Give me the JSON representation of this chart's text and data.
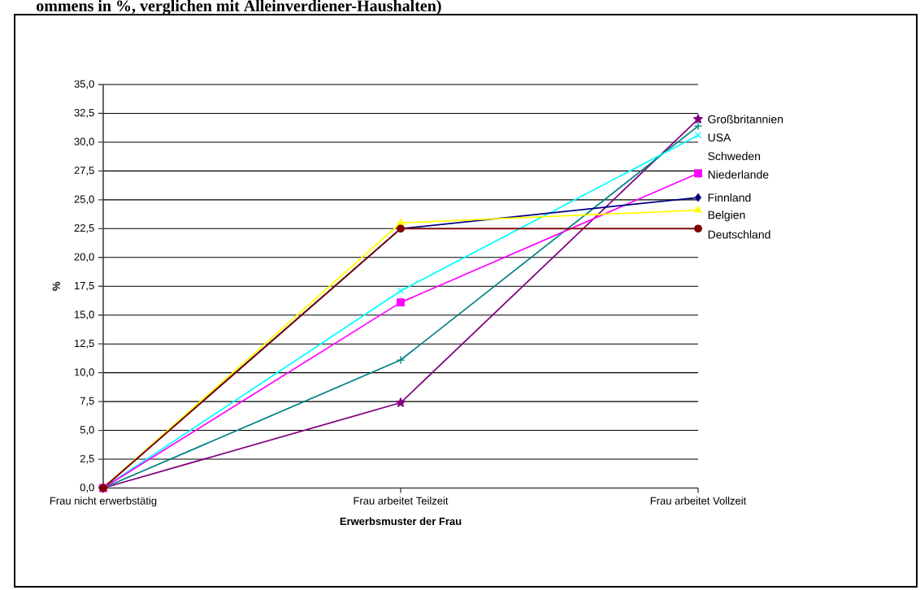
{
  "chart_data": {
    "type": "line",
    "title": "ommens in %, verglichen mit Alleinverdiener-Haushalten)",
    "xlabel": "Erwerbsmuster der Frau",
    "ylabel": "%",
    "categories": [
      "Frau nicht erwerbstätig",
      "Frau arbeitet Teilzeit",
      "Frau arbeitet Vollzeit"
    ],
    "ylim": [
      0,
      35
    ],
    "yticks": [
      {
        "value": 0,
        "label": "0,0"
      },
      {
        "value": 2.5,
        "label": "2,5"
      },
      {
        "value": 5,
        "label": "5,0"
      },
      {
        "value": 7.5,
        "label": "7,5"
      },
      {
        "value": 10,
        "label": "10,0"
      },
      {
        "value": 12.5,
        "label": "12,5"
      },
      {
        "value": 15,
        "label": "15,0"
      },
      {
        "value": 17.5,
        "label": "17,5"
      },
      {
        "value": 20,
        "label": "20,0"
      },
      {
        "value": 22.5,
        "label": "22,5"
      },
      {
        "value": 25,
        "label": "25,0"
      },
      {
        "value": 27.5,
        "label": "27,5"
      },
      {
        "value": 30,
        "label": "30,0"
      },
      {
        "value": 32.5,
        "label": "32,5"
      },
      {
        "value": 35,
        "label": "35,0"
      }
    ],
    "grid": "y",
    "legend": false,
    "series": [
      {
        "name": "Großbritannien",
        "color": "#800080",
        "marker": "star",
        "values": [
          0,
          7.4,
          32.0
        ]
      },
      {
        "name": "USA",
        "color": "#008080",
        "marker": "plus",
        "values": [
          0,
          11.1,
          31.4
        ]
      },
      {
        "name": "Schweden",
        "color": "#00ffff",
        "marker": "cross",
        "values": [
          0,
          17.1,
          30.6
        ]
      },
      {
        "name": "Niederlande",
        "color": "#ff00ff",
        "marker": "square",
        "values": [
          0,
          16.1,
          27.3
        ]
      },
      {
        "name": "Finnland",
        "color": "#000080",
        "marker": "diamond",
        "values": [
          0,
          22.5,
          25.2
        ]
      },
      {
        "name": "Belgien",
        "color": "#ffff00",
        "marker": "triangle",
        "values": [
          0,
          23.0,
          24.1
        ]
      },
      {
        "name": "Deutschland",
        "color": "#800000",
        "marker": "circle",
        "values": [
          0,
          22.5,
          22.5
        ]
      }
    ]
  }
}
